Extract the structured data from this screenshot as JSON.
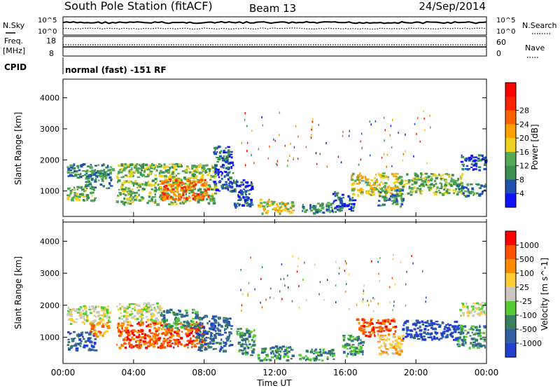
{
  "header": {
    "title": "South Pole Station (fitACF)",
    "beam": "Beam 13",
    "date": "24/Sep/2014"
  },
  "status_panel": {
    "nsky_label": "N.Sky",
    "nsearch_label": "N.Search",
    "freq_label_1": "Freq.",
    "freq_label_2": "[MHz]",
    "nave_label": "Nave",
    "cpid_label": "CPID",
    "cpid_text": "normal (fast) -151 RF",
    "noise_ticks_left": [
      "10^5",
      "10^0"
    ],
    "noise_ticks_right": [
      "10^5",
      "10^0"
    ],
    "freq_ticks": [
      "18",
      "8"
    ],
    "nave_ticks": [
      "60",
      "0"
    ]
  },
  "time_axis": {
    "ticks": [
      "00:00",
      "04:00",
      "08:00",
      "12:00",
      "16:00",
      "20:00",
      "00:00"
    ],
    "label": "Time UT"
  },
  "power_colorbar": {
    "label": "Power [dB]",
    "ticks": [
      "4",
      "8",
      "12",
      "16",
      "20",
      "24",
      "28"
    ],
    "colors": [
      "#1010ff",
      "#2050b0",
      "#3a8f50",
      "#55aa55",
      "#f0d020",
      "#ffa000",
      "#ff6000",
      "#ff2000",
      "#ff0000"
    ]
  },
  "velocity_colorbar": {
    "label": "Velocity [m s^-1]",
    "ticks": [
      "1000",
      "500",
      "100",
      "25",
      "-25",
      "-100",
      "-500",
      "-1000"
    ],
    "colors": [
      "#2040d0",
      "#3060a0",
      "#3a8060",
      "#55cc33",
      "#c8c8c0",
      "#ffcc33",
      "#ff8c00",
      "#ff5000",
      "#ff0000"
    ]
  },
  "chart_data": [
    {
      "type": "heatmap",
      "name": "power",
      "ylabel": "Slant Range [km]",
      "xlabel": "",
      "yticks": [
        1000,
        2000,
        3000,
        4000
      ],
      "ylim": [
        180,
        4600
      ],
      "xlim_hours": [
        0,
        24
      ],
      "patches": [
        {
          "t": [
            0.2,
            1.8
          ],
          "r": [
            700,
            1200
          ],
          "level": 14
        },
        {
          "t": [
            0.2,
            2.8
          ],
          "r": [
            1450,
            1900
          ],
          "level": 10
        },
        {
          "t": [
            1.2,
            2.7
          ],
          "r": [
            1100,
            1700
          ],
          "level": 12
        },
        {
          "t": [
            3.0,
            8.6
          ],
          "r": [
            600,
            1900
          ],
          "level": 16
        },
        {
          "t": [
            5.5,
            8.2
          ],
          "r": [
            750,
            1400
          ],
          "level": 27
        },
        {
          "t": [
            8.5,
            9.6
          ],
          "r": [
            1000,
            2500
          ],
          "level": 9
        },
        {
          "t": [
            9.6,
            10.7
          ],
          "r": [
            500,
            1400
          ],
          "level": 6
        },
        {
          "t": [
            11.0,
            13.0
          ],
          "r": [
            300,
            750
          ],
          "level": 18
        },
        {
          "t": [
            13.5,
            15.2
          ],
          "r": [
            300,
            650
          ],
          "level": 10
        },
        {
          "t": [
            15.2,
            16.5
          ],
          "r": [
            350,
            1000
          ],
          "level": 6
        },
        {
          "t": [
            16.3,
            19.0
          ],
          "r": [
            900,
            1600
          ],
          "level": 18
        },
        {
          "t": [
            17.8,
            19.2
          ],
          "r": [
            500,
            1100
          ],
          "level": 12
        },
        {
          "t": [
            19.0,
            22.6
          ],
          "r": [
            900,
            1600
          ],
          "level": 16
        },
        {
          "t": [
            22.3,
            23.9
          ],
          "r": [
            850,
            1250
          ],
          "level": 11
        },
        {
          "t": [
            22.5,
            23.9
          ],
          "r": [
            1700,
            2200
          ],
          "level": 6
        }
      ]
    },
    {
      "type": "heatmap",
      "name": "velocity",
      "ylabel": "Slant Range [km]",
      "xlabel": "Time UT",
      "yticks": [
        1000,
        2000,
        3000,
        4000
      ],
      "ylim": [
        180,
        4600
      ],
      "xlim_hours": [
        0,
        24
      ],
      "patches": [
        {
          "t": [
            0.2,
            1.8
          ],
          "r": [
            600,
            1200
          ],
          "level": 1
        },
        {
          "t": [
            0.2,
            2.6
          ],
          "r": [
            1450,
            2000
          ],
          "level": 4
        },
        {
          "t": [
            1.5,
            2.5
          ],
          "r": [
            1050,
            1500
          ],
          "level": 6
        },
        {
          "t": [
            3.0,
            5.5
          ],
          "r": [
            1500,
            2100
          ],
          "level": 4
        },
        {
          "t": [
            3.0,
            8.0
          ],
          "r": [
            700,
            1500
          ],
          "level": 7
        },
        {
          "t": [
            5.5,
            7.8
          ],
          "r": [
            1300,
            1900
          ],
          "level": 2
        },
        {
          "t": [
            7.5,
            9.5
          ],
          "r": [
            600,
            1700
          ],
          "level": 1
        },
        {
          "t": [
            9.8,
            10.8
          ],
          "r": [
            400,
            1300
          ],
          "level": 2
        },
        {
          "t": [
            11.0,
            13.0
          ],
          "r": [
            300,
            750
          ],
          "level": 2
        },
        {
          "t": [
            13.3,
            15.3
          ],
          "r": [
            300,
            650
          ],
          "level": 2
        },
        {
          "t": [
            15.8,
            17.0
          ],
          "r": [
            450,
            1100
          ],
          "level": 2
        },
        {
          "t": [
            16.6,
            18.8
          ],
          "r": [
            1050,
            1600
          ],
          "level": 7
        },
        {
          "t": [
            17.8,
            19.2
          ],
          "r": [
            500,
            1100
          ],
          "level": 5
        },
        {
          "t": [
            19.2,
            22.4
          ],
          "r": [
            950,
            1550
          ],
          "level": 0
        },
        {
          "t": [
            22.4,
            23.9
          ],
          "r": [
            1700,
            2100
          ],
          "level": 4
        },
        {
          "t": [
            22.3,
            23.9
          ],
          "r": [
            700,
            1400
          ],
          "level": 2
        }
      ]
    }
  ]
}
